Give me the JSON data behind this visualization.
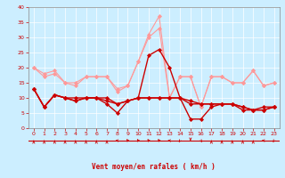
{
  "x": [
    0,
    1,
    2,
    3,
    4,
    5,
    6,
    7,
    8,
    9,
    10,
    11,
    12,
    13,
    14,
    15,
    16,
    17,
    18,
    19,
    20,
    21,
    22,
    23
  ],
  "y_light1": [
    20,
    18,
    19,
    15,
    15,
    17,
    17,
    17,
    12,
    14,
    22,
    30,
    33,
    10,
    17,
    17,
    7,
    17,
    17,
    15,
    15,
    19,
    14,
    15
  ],
  "y_light2": [
    20,
    17,
    18,
    15,
    14,
    17,
    17,
    17,
    13,
    14,
    22,
    31,
    37,
    10,
    17,
    17,
    7,
    17,
    17,
    15,
    15,
    19,
    14,
    15
  ],
  "y_dark1": [
    13,
    7,
    11,
    10,
    9,
    10,
    10,
    8,
    5,
    9,
    10,
    24,
    26,
    20,
    10,
    3,
    3,
    7,
    8,
    8,
    6,
    6,
    7,
    7
  ],
  "y_dark2": [
    13,
    7,
    11,
    10,
    10,
    10,
    10,
    10,
    8,
    9,
    10,
    10,
    10,
    10,
    10,
    8,
    8,
    8,
    8,
    8,
    7,
    6,
    6,
    7
  ],
  "y_dark3": [
    13,
    7,
    11,
    10,
    9,
    10,
    10,
    9,
    8,
    9,
    10,
    10,
    10,
    10,
    10,
    9,
    8,
    8,
    8,
    8,
    7,
    6,
    6,
    7
  ],
  "color_light": "#ff9999",
  "color_dark": "#cc0000",
  "bg_color": "#cceeff",
  "grid_color": "#ffffff",
  "xlabel": "Vent moyen/en rafales ( km/h )",
  "ylim": [
    0,
    40
  ],
  "yticks": [
    0,
    5,
    10,
    15,
    20,
    25,
    30,
    35,
    40
  ],
  "xticks": [
    0,
    1,
    2,
    3,
    4,
    5,
    6,
    7,
    8,
    9,
    10,
    11,
    12,
    13,
    14,
    15,
    16,
    17,
    18,
    19,
    20,
    21,
    22,
    23
  ],
  "arrow_dirs": [
    0,
    0,
    0,
    0,
    0,
    0,
    0,
    0,
    270,
    315,
    315,
    315,
    315,
    270,
    225,
    180,
    135,
    0,
    0,
    0,
    0,
    0,
    270,
    225
  ]
}
